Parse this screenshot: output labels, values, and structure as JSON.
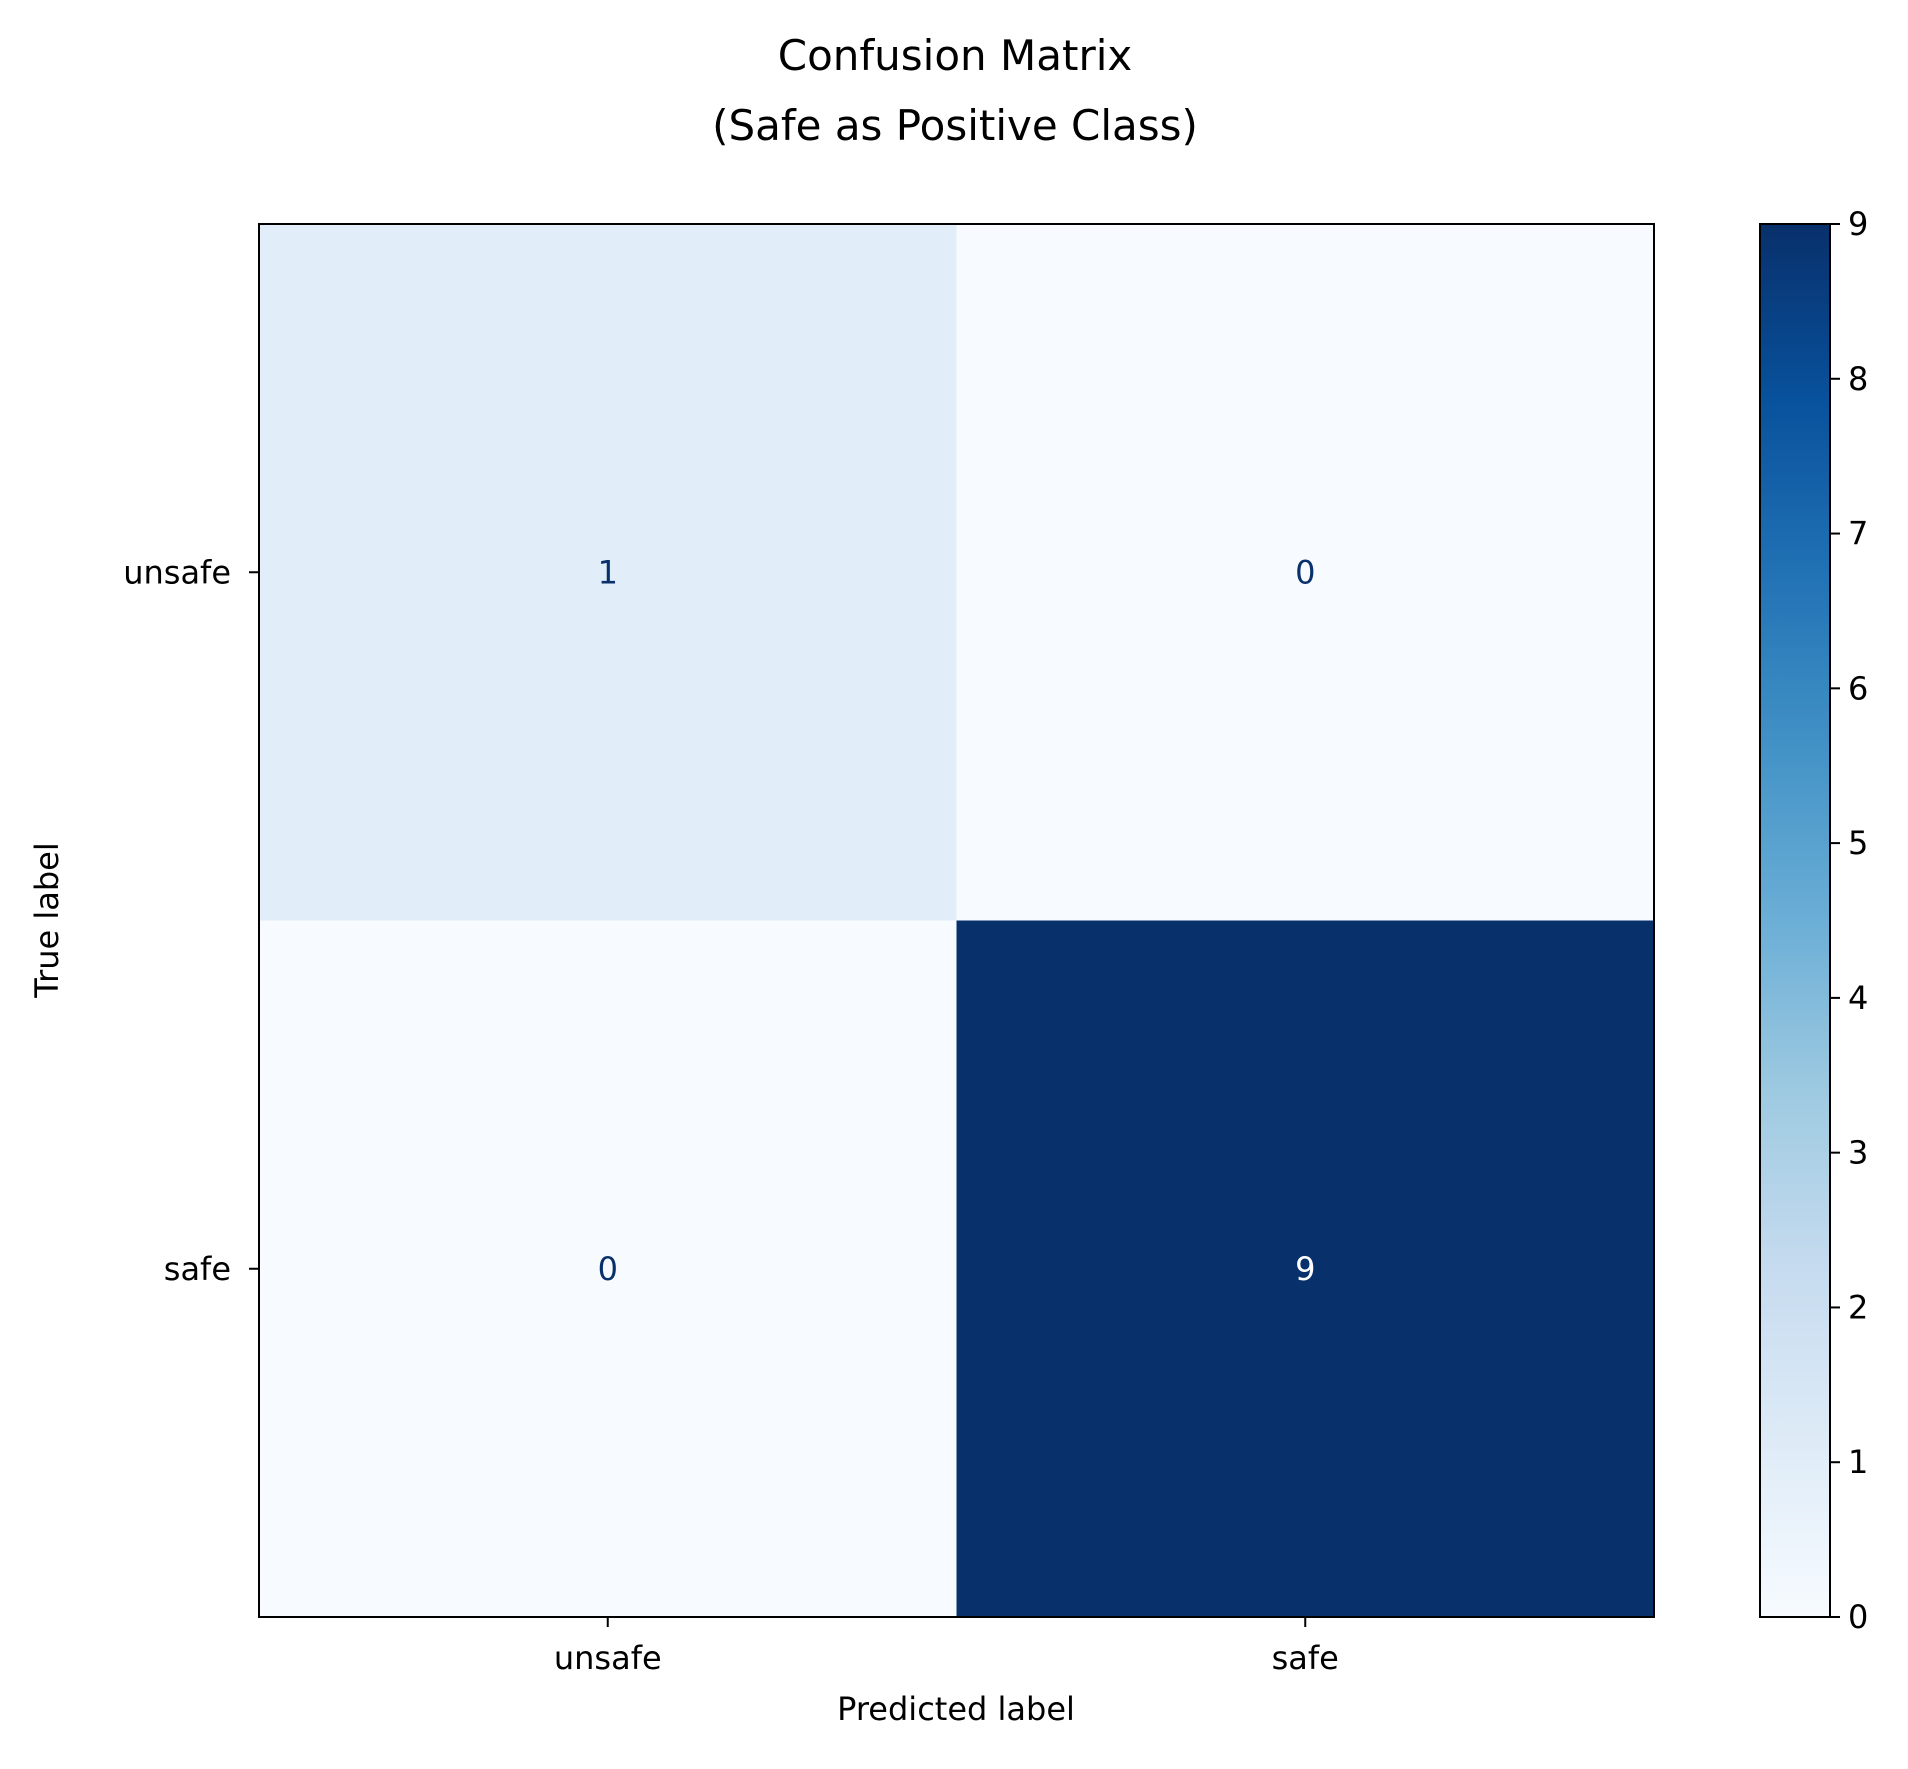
{
  "chart_data": {
    "type": "heatmap",
    "title": "Confusion Matrix\n(Safe as Positive Class)",
    "xlabel": "Predicted label",
    "ylabel": "True label",
    "x_categories": [
      "unsafe",
      "safe"
    ],
    "y_categories": [
      "unsafe",
      "safe"
    ],
    "matrix": [
      [
        1,
        0
      ],
      [
        0,
        9
      ]
    ],
    "colormap": "Blues",
    "colorbar": {
      "min": 0,
      "max": 9,
      "ticks": [
        "0",
        "1",
        "2",
        "3",
        "4",
        "5",
        "6",
        "7",
        "8",
        "9"
      ]
    },
    "colors": {
      "low": "#f7fbff",
      "high": "#08306b",
      "text_dark": "#08306b",
      "text_light": "#ffffff"
    }
  }
}
